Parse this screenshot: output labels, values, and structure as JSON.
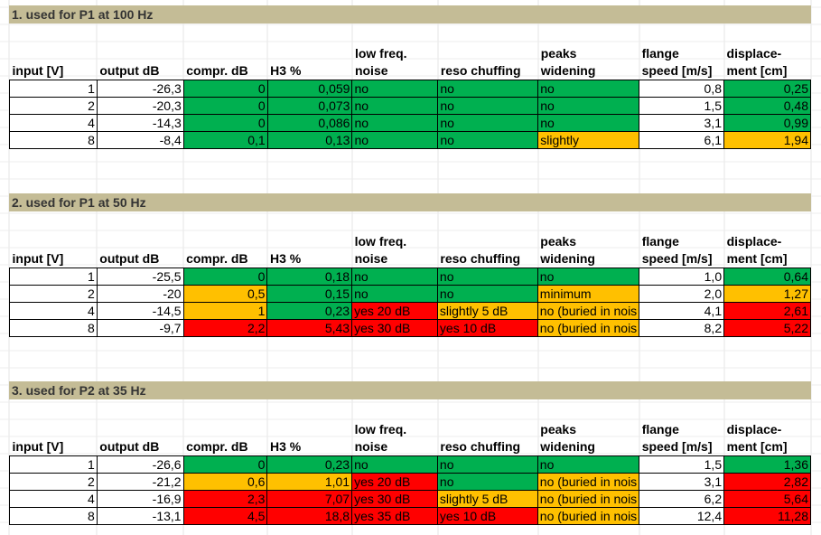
{
  "headers": {
    "input": "input [V]",
    "output": "output dB",
    "compr": "compr.  dB",
    "h3": "H3 %",
    "lowfreq_1": "low freq.",
    "lowfreq_2": "noise",
    "reso": "reso chuffing",
    "peaks_1": "peaks",
    "peaks_2": "widening",
    "flange_1": "flange",
    "flange_2": "speed [m/s]",
    "disp_1": "displace-",
    "disp_2": "ment [cm]"
  },
  "colors": {
    "green": "#00b050",
    "yellow": "#ffc000",
    "red": "#ff0000",
    "band": "#c4bc96"
  },
  "sections": [
    {
      "title": "1. used for P1 at 100 Hz",
      "rows": [
        {
          "input": "1",
          "output": "-26,3",
          "compr": "0",
          "compr_c": "g",
          "h3": "0,059",
          "h3_c": "g",
          "lowfreq": "no",
          "lowfreq_c": "g",
          "reso": "no",
          "reso_c": "g",
          "peaks": "no",
          "peaks_c": "g",
          "flange": "0,8",
          "disp": "0,25",
          "disp_c": "g"
        },
        {
          "input": "2",
          "output": "-20,3",
          "compr": "0",
          "compr_c": "g",
          "h3": "0,073",
          "h3_c": "g",
          "lowfreq": "no",
          "lowfreq_c": "g",
          "reso": "no",
          "reso_c": "g",
          "peaks": "no",
          "peaks_c": "g",
          "flange": "1,5",
          "disp": "0,48",
          "disp_c": "g"
        },
        {
          "input": "4",
          "output": "-14,3",
          "compr": "0",
          "compr_c": "g",
          "h3": "0,086",
          "h3_c": "g",
          "lowfreq": "no",
          "lowfreq_c": "g",
          "reso": "no",
          "reso_c": "g",
          "peaks": "no",
          "peaks_c": "g",
          "flange": "3,1",
          "disp": "0,99",
          "disp_c": "g"
        },
        {
          "input": "8",
          "output": "-8,4",
          "compr": "0,1",
          "compr_c": "g",
          "h3": "0,13",
          "h3_c": "g",
          "lowfreq": "no",
          "lowfreq_c": "g",
          "reso": "no",
          "reso_c": "g",
          "peaks": "slightly",
          "peaks_c": "y",
          "flange": "6,1",
          "disp": "1,94",
          "disp_c": "y"
        }
      ]
    },
    {
      "title": "2. used for P1 at 50 Hz",
      "rows": [
        {
          "input": "1",
          "output": "-25,5",
          "compr": "0",
          "compr_c": "g",
          "h3": "0,18",
          "h3_c": "g",
          "lowfreq": "no",
          "lowfreq_c": "g",
          "reso": "no",
          "reso_c": "g",
          "peaks": "no",
          "peaks_c": "g",
          "flange": "1,0",
          "disp": "0,64",
          "disp_c": "g"
        },
        {
          "input": "2",
          "output": "-20",
          "compr": "0,5",
          "compr_c": "y",
          "h3": "0,15",
          "h3_c": "g",
          "lowfreq": "no",
          "lowfreq_c": "g",
          "reso": "no",
          "reso_c": "g",
          "peaks": "minimum",
          "peaks_c": "y",
          "flange": "2,0",
          "disp": "1,27",
          "disp_c": "y"
        },
        {
          "input": "4",
          "output": "-14,5",
          "compr": "1",
          "compr_c": "y",
          "h3": "0,23",
          "h3_c": "g",
          "lowfreq": "yes 20 dB",
          "lowfreq_c": "r",
          "reso": "slightly 5 dB",
          "reso_c": "y",
          "peaks": "no (buried in nois",
          "peaks_c": "y",
          "flange": "4,1",
          "disp": "2,61",
          "disp_c": "r"
        },
        {
          "input": "8",
          "output": "-9,7",
          "compr": "2,2",
          "compr_c": "r",
          "h3": "5,43",
          "h3_c": "r",
          "lowfreq": "yes 30 dB",
          "lowfreq_c": "r",
          "reso": "yes 10 dB",
          "reso_c": "r",
          "peaks": "no (buried in nois",
          "peaks_c": "y",
          "flange": "8,2",
          "disp": "5,22",
          "disp_c": "r"
        }
      ]
    },
    {
      "title": "3. used for P2 at 35 Hz",
      "rows": [
        {
          "input": "1",
          "output": "-26,6",
          "compr": "0",
          "compr_c": "g",
          "h3": "0,23",
          "h3_c": "g",
          "lowfreq": "no",
          "lowfreq_c": "g",
          "reso": "no",
          "reso_c": "g",
          "peaks": "no",
          "peaks_c": "g",
          "flange": "1,5",
          "disp": "1,36",
          "disp_c": "g"
        },
        {
          "input": "2",
          "output": "-21,2",
          "compr": "0,6",
          "compr_c": "y",
          "h3": "1,01",
          "h3_c": "y",
          "lowfreq": "yes 20 dB",
          "lowfreq_c": "r",
          "reso": "no",
          "reso_c": "g",
          "peaks": "no (buried in nois",
          "peaks_c": "y",
          "flange": "3,1",
          "disp": "2,82",
          "disp_c": "r"
        },
        {
          "input": "4",
          "output": "-16,9",
          "compr": "2,3",
          "compr_c": "r",
          "h3": "7,07",
          "h3_c": "r",
          "lowfreq": "yes 30 dB",
          "lowfreq_c": "r",
          "reso": "slightly 5 dB",
          "reso_c": "y",
          "peaks": "no (buried in nois",
          "peaks_c": "y",
          "flange": "6,2",
          "disp": "5,64",
          "disp_c": "r"
        },
        {
          "input": "8",
          "output": "-13,1",
          "compr": "4,5",
          "compr_c": "r",
          "h3": "18,8",
          "h3_c": "r",
          "lowfreq": "yes 35 dB",
          "lowfreq_c": "r",
          "reso": "yes 10 dB",
          "reso_c": "r",
          "peaks": "no (buried in nois",
          "peaks_c": "y",
          "flange": "12,4",
          "disp": "11,28",
          "disp_c": "r"
        }
      ]
    }
  ]
}
